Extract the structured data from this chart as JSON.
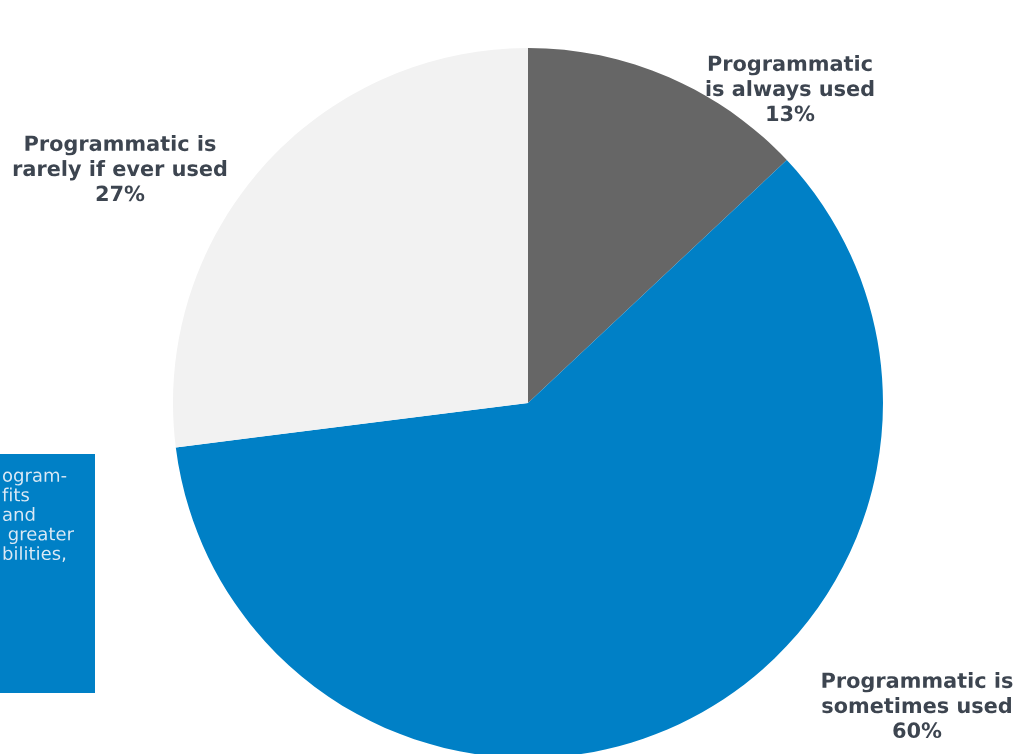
{
  "chart_data": {
    "type": "pie",
    "categories": [
      "Programmatic\nis always used",
      "Programmatic is\nsometimes used",
      "Programmatic is\nrarely if ever used"
    ],
    "values": [
      13,
      60,
      27
    ],
    "value_labels": [
      "13%",
      "60%",
      "27%"
    ],
    "colors": [
      "#666666",
      "#0080c6",
      "#f2f2f2"
    ],
    "annotations": [
      "ogram-\nfits\nand\n greater\nbilities,"
    ],
    "legend": false
  }
}
